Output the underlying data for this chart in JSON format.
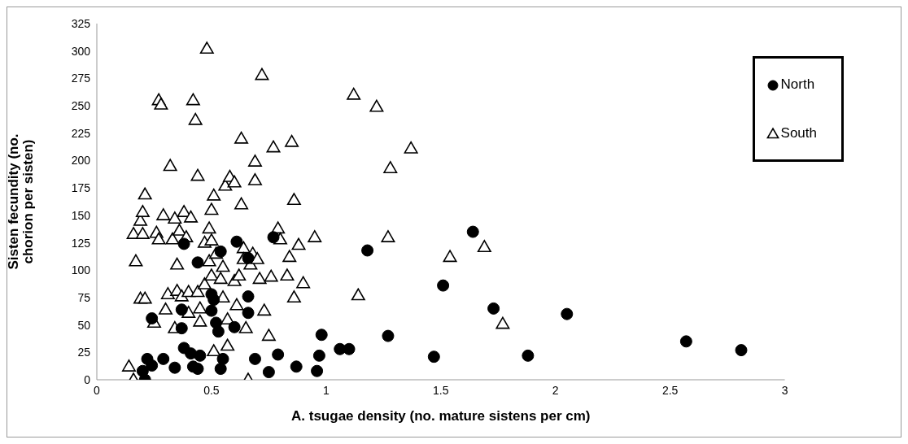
{
  "chart_data": {
    "type": "scatter",
    "xlabel": "A. tsugae density (no. mature sistens per cm)",
    "ylabel": "Sisten fecundity (no. chorion per sisten)",
    "xlim": [
      0,
      3
    ],
    "xticks": [
      0,
      0.5,
      1,
      1.5,
      2,
      2.5,
      3
    ],
    "ylim": [
      0,
      325
    ],
    "yticks": [
      0,
      25,
      50,
      75,
      100,
      125,
      150,
      175,
      200,
      225,
      250,
      275,
      300,
      325
    ],
    "grid": false,
    "legend": "top right",
    "series": [
      {
        "name": "North",
        "color": "#000000",
        "marker": "circle",
        "x": [
          0.2,
          0.21,
          0.22,
          0.24,
          0.24,
          0.29,
          0.34,
          0.37,
          0.37,
          0.38,
          0.38,
          0.41,
          0.42,
          0.44,
          0.44,
          0.45,
          0.5,
          0.5,
          0.51,
          0.52,
          0.53,
          0.54,
          0.54,
          0.55,
          0.6,
          0.61,
          0.66,
          0.66,
          0.66,
          0.69,
          0.75,
          0.77,
          0.79,
          0.87,
          0.96,
          0.97,
          0.98,
          1.06,
          1.1,
          1.18,
          1.27,
          1.47,
          1.51,
          1.64,
          1.73,
          1.88,
          2.05,
          2.57,
          2.81
        ],
        "values": [
          8,
          0,
          19,
          13,
          56,
          19,
          11,
          64,
          47,
          124,
          29,
          24,
          12,
          10,
          107,
          22,
          78,
          63,
          73,
          52,
          44,
          117,
          10,
          19,
          48,
          126,
          111,
          61,
          76,
          19,
          7,
          130,
          23,
          12,
          8,
          22,
          41,
          28,
          28,
          118,
          40,
          21,
          86,
          135,
          65,
          22,
          60,
          35,
          27
        ]
      },
      {
        "name": "South",
        "color": "#000000",
        "marker": "triangle",
        "x": [
          0.14,
          0.16,
          0.16,
          0.17,
          0.19,
          0.19,
          0.2,
          0.2,
          0.21,
          0.21,
          0.25,
          0.26,
          0.27,
          0.27,
          0.28,
          0.29,
          0.3,
          0.31,
          0.32,
          0.33,
          0.34,
          0.34,
          0.35,
          0.35,
          0.36,
          0.37,
          0.38,
          0.39,
          0.4,
          0.4,
          0.41,
          0.42,
          0.43,
          0.44,
          0.44,
          0.45,
          0.45,
          0.47,
          0.47,
          0.48,
          0.49,
          0.49,
          0.5,
          0.5,
          0.5,
          0.51,
          0.51,
          0.52,
          0.54,
          0.55,
          0.55,
          0.56,
          0.57,
          0.57,
          0.58,
          0.6,
          0.6,
          0.61,
          0.62,
          0.63,
          0.63,
          0.64,
          0.64,
          0.65,
          0.66,
          0.67,
          0.68,
          0.69,
          0.69,
          0.7,
          0.71,
          0.72,
          0.73,
          0.75,
          0.76,
          0.77,
          0.79,
          0.8,
          0.83,
          0.84,
          0.85,
          0.86,
          0.86,
          0.88,
          0.9,
          0.95,
          1.12,
          1.14,
          1.22,
          1.27,
          1.28,
          1.37,
          1.54,
          1.69,
          1.77
        ],
        "values": [
          12,
          0,
          133,
          108,
          74,
          145,
          153,
          133,
          169,
          74,
          52,
          134,
          128,
          255,
          251,
          150,
          64,
          78,
          195,
          128,
          147,
          47,
          81,
          105,
          136,
          76,
          153,
          130,
          61,
          80,
          148,
          255,
          237,
          186,
          80,
          65,
          53,
          87,
          125,
          302,
          138,
          108,
          155,
          127,
          95,
          168,
          26,
          115,
          92,
          103,
          75,
          177,
          55,
          31,
          185,
          180,
          90,
          68,
          95,
          160,
          220,
          120,
          110,
          47,
          0,
          105,
          115,
          199,
          182,
          110,
          92,
          278,
          63,
          40,
          94,
          212,
          138,
          128,
          95,
          112,
          217,
          164,
          75,
          123,
          88,
          130,
          260,
          77,
          249,
          130,
          193,
          211,
          112,
          121,
          51
        ]
      }
    ]
  }
}
